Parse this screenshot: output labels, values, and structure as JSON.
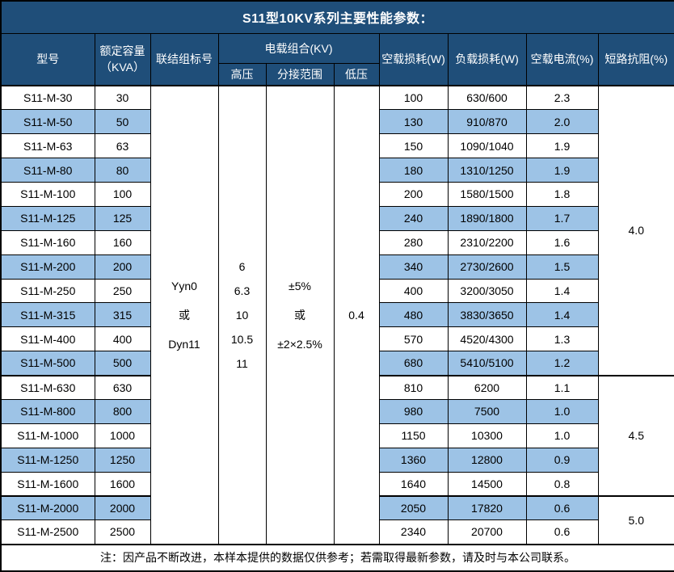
{
  "title": "S11型10KV系列主要性能参数：",
  "header": {
    "model": "型号",
    "capacity": "额定容量\n（KVA）",
    "connection": "联结组标号",
    "voltage_group": "电载组合(KV)",
    "hv": "高压",
    "tap_range": "分接范围",
    "lv": "低压",
    "no_load_loss": "空载损耗(W)",
    "load_loss": "负载损耗(W)",
    "no_load_current": "空载电流(%)",
    "impedance": "短路抗阻(%)"
  },
  "merged": {
    "connection": "Yyn0\n或\nDyn11",
    "hv": "6\n6.3\n10\n10.5\n11",
    "tap_range": "±5%\n或\n±2×2.5%",
    "lv": "0.4"
  },
  "rows": [
    {
      "model": "S11-M-30",
      "capacity": "30",
      "no_load_loss": "100",
      "load_loss": "630/600",
      "no_load_current": "2.3"
    },
    {
      "model": "S11-M-50",
      "capacity": "50",
      "no_load_loss": "130",
      "load_loss": "910/870",
      "no_load_current": "2.0"
    },
    {
      "model": "S11-M-63",
      "capacity": "63",
      "no_load_loss": "150",
      "load_loss": "1090/1040",
      "no_load_current": "1.9"
    },
    {
      "model": "S11-M-80",
      "capacity": "80",
      "no_load_loss": "180",
      "load_loss": "1310/1250",
      "no_load_current": "1.9"
    },
    {
      "model": "S11-M-100",
      "capacity": "100",
      "no_load_loss": "200",
      "load_loss": "1580/1500",
      "no_load_current": "1.8"
    },
    {
      "model": "S11-M-125",
      "capacity": "125",
      "no_load_loss": "240",
      "load_loss": "1890/1800",
      "no_load_current": "1.7"
    },
    {
      "model": "S11-M-160",
      "capacity": "160",
      "no_load_loss": "280",
      "load_loss": "2310/2200",
      "no_load_current": "1.6"
    },
    {
      "model": "S11-M-200",
      "capacity": "200",
      "no_load_loss": "340",
      "load_loss": "2730/2600",
      "no_load_current": "1.5"
    },
    {
      "model": "S11-M-250",
      "capacity": "250",
      "no_load_loss": "400",
      "load_loss": "3200/3050",
      "no_load_current": "1.4"
    },
    {
      "model": "S11-M-315",
      "capacity": "315",
      "no_load_loss": "480",
      "load_loss": "3830/3650",
      "no_load_current": "1.4"
    },
    {
      "model": "S11-M-400",
      "capacity": "400",
      "no_load_loss": "570",
      "load_loss": "4520/4300",
      "no_load_current": "1.3"
    },
    {
      "model": "S11-M-500",
      "capacity": "500",
      "no_load_loss": "680",
      "load_loss": "5410/5100",
      "no_load_current": "1.2"
    },
    {
      "model": "S11-M-630",
      "capacity": "630",
      "no_load_loss": "810",
      "load_loss": "6200",
      "no_load_current": "1.1"
    },
    {
      "model": "S11-M-800",
      "capacity": "800",
      "no_load_loss": "980",
      "load_loss": "7500",
      "no_load_current": "1.0"
    },
    {
      "model": "S11-M-1000",
      "capacity": "1000",
      "no_load_loss": "1150",
      "load_loss": "10300",
      "no_load_current": "1.0"
    },
    {
      "model": "S11-M-1250",
      "capacity": "1250",
      "no_load_loss": "1360",
      "load_loss": "12800",
      "no_load_current": "0.9"
    },
    {
      "model": "S11-M-1600",
      "capacity": "1600",
      "no_load_loss": "1640",
      "load_loss": "14500",
      "no_load_current": "0.8"
    },
    {
      "model": "S11-M-2000",
      "capacity": "2000",
      "no_load_loss": "2050",
      "load_loss": "17820",
      "no_load_current": "0.6"
    },
    {
      "model": "S11-M-2500",
      "capacity": "2500",
      "no_load_loss": "2340",
      "load_loss": "20700",
      "no_load_current": "0.6"
    }
  ],
  "impedance_groups": [
    {
      "value": "4.0",
      "rows": 12
    },
    {
      "value": "4.5",
      "rows": 5
    },
    {
      "value": "5.0",
      "rows": 2
    }
  ],
  "footer_note": "注：因产品不断改进，本样本提供的数据仅供参考；若需取得最新参数，请及时与本公司联系。",
  "colors": {
    "header_bg": "#1F4E79",
    "header_text": "#FFFFFF",
    "row_alt_bg": "#9DC3E6",
    "border": "#000000"
  }
}
